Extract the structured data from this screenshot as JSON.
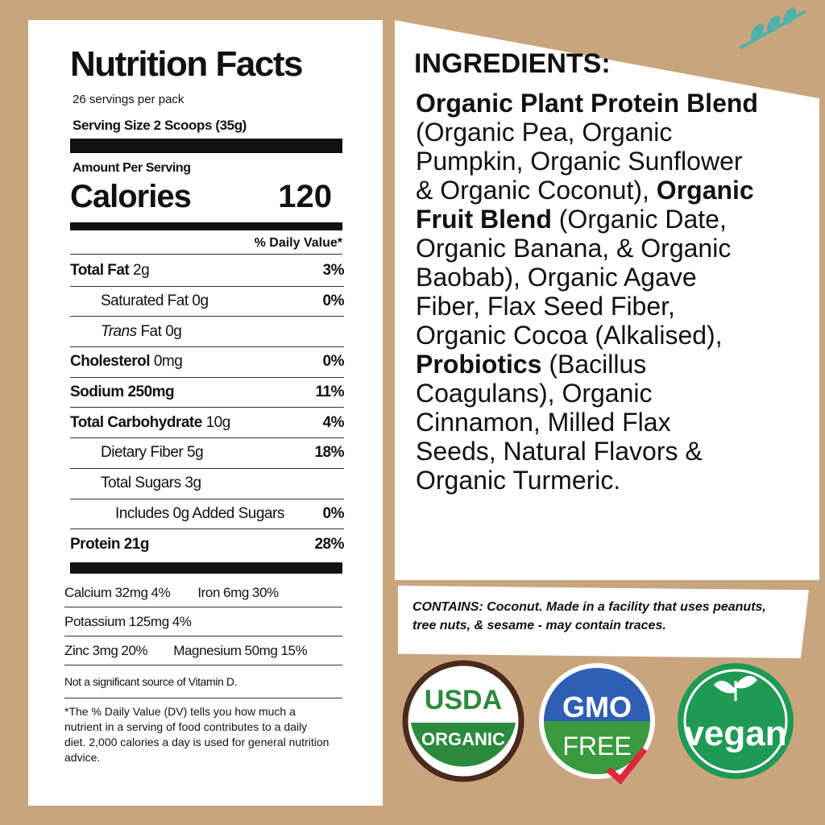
{
  "nutrition": {
    "title": "Nutrition Facts",
    "servings": "26 servings per pack",
    "serving_size": "Serving Size 2 Scoops (35g)",
    "amount_per_serving": "Amount Per Serving",
    "calories_label": "Calories",
    "calories": "120",
    "daily_value_header": "% Daily Value*",
    "rows": [
      {
        "name": "Total Fat",
        "amount": "2g",
        "dv": "3%"
      },
      {
        "name": "Saturated Fat",
        "amount": "0g",
        "dv": "0%"
      },
      {
        "name_italic": "Trans",
        "name": "Fat",
        "amount": "0g"
      },
      {
        "name": "Cholesterol",
        "amount": "0mg",
        "dv": "0%"
      },
      {
        "name": "Sodium",
        "amount": "250mg",
        "dv": "11%"
      },
      {
        "name": "Total Carbohydrate",
        "amount": "10g",
        "dv": "4%"
      },
      {
        "name": "Dietary Fiber",
        "amount": "5g",
        "dv": "18%"
      },
      {
        "name": "Total Sugars",
        "amount": "3g"
      },
      {
        "name": "Includes 0g Added Sugars",
        "dv": "0%"
      },
      {
        "name": "Protein",
        "amount": "21g",
        "dv": "28%"
      }
    ],
    "minerals": [
      {
        "name": "Calcium",
        "amount": "32mg",
        "dv": "4%"
      },
      {
        "name": "Iron",
        "amount": "6mg",
        "dv": "30%"
      },
      {
        "name": "Potassium",
        "amount": "125mg",
        "dv": "4%"
      },
      {
        "name": "Zinc",
        "amount": "3mg",
        "dv": "20%"
      },
      {
        "name": "Magnesium",
        "amount": "50mg",
        "dv": "15%"
      }
    ],
    "note": "Not a significant source of Vitamin D.",
    "footnote": "*The % Daily Value (DV) tells you how much a nutrient in a serving of food contributes to a daily diet. 2,000 calories a day is used for general nutrition advice."
  },
  "ingredients": {
    "heading": "INGREDIENTS:",
    "segments": [
      "Organic Plant Protein Blend",
      " (Organic Pea, Organic Pumpkin, Organic Sunflower & Organic Coconut), ",
      "Organic Fruit Blend",
      " (Organic Date, Organic Banana, & Organic Baobab), Organic Agave Fiber, Flax Seed Fiber, Organic Cocoa (Alkalised), ",
      "Probiotics",
      " (Bacillus Coagulans), Organic Cinnamon, Milled Flax Seeds, Natural Flavors & Organic Turmeric."
    ]
  },
  "contains": {
    "label": "CONTAINS:",
    "text": " Coconut. Made in a facility that uses peanuts, tree nuts, & sesame - may contain traces."
  },
  "badges": {
    "usda": "USDA",
    "organic": "ORGANIC",
    "gmo": "GMO",
    "free": "FREE",
    "vegan": "vegan"
  }
}
